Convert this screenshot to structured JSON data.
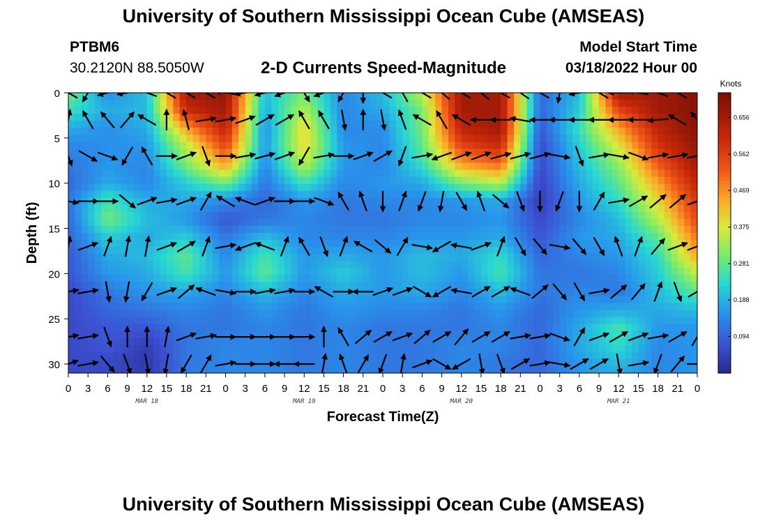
{
  "header": {
    "title": "University of Southern Mississippi Ocean Cube (AMSEAS)",
    "station_id": "PTBM6",
    "station_coords": "30.2120N  88.5050W",
    "subtitle": "2-D Currents Speed-Magnitude",
    "model_start_label": "Model Start Time",
    "model_start_value": "03/18/2022 Hour 00"
  },
  "footer": {
    "title": "University of Southern Mississippi Ocean Cube (AMSEAS)"
  },
  "chart_data": {
    "type": "heatmap",
    "title": "2-D Currents Speed-Magnitude",
    "xlabel": "Forecast Time(Z)",
    "ylabel": "Depth (ft)",
    "x_tick_labels": [
      "0",
      "3",
      "6",
      "9",
      "12",
      "15",
      "18",
      "21",
      "0",
      "3",
      "6",
      "9",
      "12",
      "15",
      "18",
      "21",
      "0",
      "3",
      "6",
      "9",
      "12",
      "15",
      "18",
      "21",
      "0",
      "3",
      "6",
      "9",
      "12",
      "15",
      "18",
      "21",
      "0"
    ],
    "x_range_hours": [
      0,
      96
    ],
    "date_labels": [
      {
        "label": "MAR 18",
        "hour": 12
      },
      {
        "label": "MAR 19",
        "hour": 36
      },
      {
        "label": "MAR 20",
        "hour": 60
      },
      {
        "label": "MAR 21",
        "hour": 84
      }
    ],
    "y_tick_labels": [
      "0",
      "5",
      "10",
      "15",
      "20",
      "25",
      "30"
    ],
    "y_tick_values": [
      0,
      5,
      10,
      15,
      20,
      25,
      30
    ],
    "y_range_ft": [
      0,
      31
    ],
    "y_reversed": true,
    "colorbar": {
      "title": "Knots",
      "tick_labels": [
        "0.094",
        "0.188",
        "0.281",
        "0.375",
        "0.469",
        "0.562",
        "0.656"
      ],
      "tick_values": [
        0.094,
        0.188,
        0.281,
        0.375,
        0.469,
        0.562,
        0.656
      ],
      "range": [
        0.0,
        0.72
      ]
    },
    "depths_ft": [
      0,
      2,
      4,
      6,
      8,
      10,
      12,
      14,
      16,
      18,
      20,
      22,
      24,
      26,
      28,
      30,
      31
    ],
    "hours": [
      0,
      6,
      12,
      18,
      24,
      30,
      36,
      42,
      48,
      54,
      60,
      66,
      72,
      78,
      84,
      90,
      96
    ],
    "speed_knots": [
      [
        0.3,
        0.15,
        0.2,
        0.66,
        0.68,
        0.2,
        0.3,
        0.14,
        0.2,
        0.35,
        0.66,
        0.66,
        0.1,
        0.2,
        0.66,
        0.66,
        0.7
      ],
      [
        0.25,
        0.18,
        0.2,
        0.6,
        0.66,
        0.18,
        0.35,
        0.14,
        0.18,
        0.3,
        0.66,
        0.66,
        0.1,
        0.22,
        0.55,
        0.66,
        0.7
      ],
      [
        0.18,
        0.15,
        0.18,
        0.45,
        0.62,
        0.15,
        0.4,
        0.14,
        0.15,
        0.3,
        0.62,
        0.66,
        0.08,
        0.25,
        0.45,
        0.62,
        0.7
      ],
      [
        0.14,
        0.15,
        0.16,
        0.35,
        0.55,
        0.16,
        0.4,
        0.16,
        0.14,
        0.28,
        0.55,
        0.6,
        0.06,
        0.22,
        0.38,
        0.58,
        0.68
      ],
      [
        0.12,
        0.16,
        0.14,
        0.3,
        0.45,
        0.14,
        0.35,
        0.16,
        0.14,
        0.24,
        0.45,
        0.5,
        0.06,
        0.2,
        0.32,
        0.52,
        0.66
      ],
      [
        0.1,
        0.18,
        0.14,
        0.22,
        0.3,
        0.12,
        0.25,
        0.14,
        0.16,
        0.18,
        0.3,
        0.35,
        0.05,
        0.18,
        0.28,
        0.45,
        0.62
      ],
      [
        0.12,
        0.26,
        0.18,
        0.18,
        0.14,
        0.1,
        0.16,
        0.12,
        0.14,
        0.14,
        0.16,
        0.18,
        0.04,
        0.16,
        0.24,
        0.4,
        0.58
      ],
      [
        0.1,
        0.3,
        0.2,
        0.16,
        0.08,
        0.12,
        0.14,
        0.12,
        0.12,
        0.14,
        0.14,
        0.16,
        0.06,
        0.14,
        0.2,
        0.35,
        0.55
      ],
      [
        0.1,
        0.22,
        0.18,
        0.22,
        0.12,
        0.2,
        0.14,
        0.14,
        0.14,
        0.16,
        0.16,
        0.18,
        0.08,
        0.16,
        0.18,
        0.28,
        0.5
      ],
      [
        0.08,
        0.18,
        0.2,
        0.28,
        0.14,
        0.26,
        0.16,
        0.18,
        0.16,
        0.2,
        0.18,
        0.24,
        0.1,
        0.14,
        0.16,
        0.24,
        0.45
      ],
      [
        0.08,
        0.16,
        0.18,
        0.26,
        0.16,
        0.28,
        0.16,
        0.22,
        0.16,
        0.2,
        0.16,
        0.26,
        0.12,
        0.12,
        0.14,
        0.22,
        0.36
      ],
      [
        0.06,
        0.12,
        0.16,
        0.18,
        0.14,
        0.2,
        0.14,
        0.18,
        0.16,
        0.18,
        0.14,
        0.2,
        0.12,
        0.14,
        0.12,
        0.2,
        0.28
      ],
      [
        0.06,
        0.1,
        0.12,
        0.14,
        0.12,
        0.16,
        0.12,
        0.16,
        0.14,
        0.14,
        0.12,
        0.16,
        0.1,
        0.16,
        0.18,
        0.18,
        0.2
      ],
      [
        0.06,
        0.08,
        0.08,
        0.12,
        0.12,
        0.14,
        0.12,
        0.14,
        0.12,
        0.12,
        0.12,
        0.14,
        0.1,
        0.18,
        0.26,
        0.16,
        0.16
      ],
      [
        0.06,
        0.08,
        0.04,
        0.12,
        0.14,
        0.14,
        0.12,
        0.14,
        0.12,
        0.12,
        0.14,
        0.14,
        0.1,
        0.18,
        0.24,
        0.14,
        0.16
      ],
      [
        0.06,
        0.06,
        0.03,
        0.12,
        0.14,
        0.14,
        0.12,
        0.14,
        0.12,
        0.12,
        0.14,
        0.12,
        0.1,
        0.16,
        0.2,
        0.14,
        0.16
      ],
      [
        0.06,
        0.06,
        0.04,
        0.12,
        0.14,
        0.14,
        0.12,
        0.14,
        0.12,
        0.12,
        0.14,
        0.12,
        0.1,
        0.16,
        0.18,
        0.14,
        0.16
      ]
    ],
    "vector_depths_ft": [
      0,
      3,
      7,
      12,
      17,
      22,
      27,
      30
    ],
    "vector_hours": [
      0,
      3,
      6,
      9,
      12,
      15,
      18,
      21,
      24,
      27,
      30,
      33,
      36,
      39,
      42,
      45,
      48,
      51,
      54,
      57,
      60,
      63,
      66,
      69,
      72,
      75,
      78,
      81,
      84,
      87,
      90,
      93,
      96
    ],
    "vector_direction_deg": [
      [
        300,
        210,
        255,
        260,
        290,
        300,
        300,
        300,
        280,
        260,
        255,
        250,
        150,
        250,
        210,
        180,
        300,
        330,
        300,
        310,
        300,
        310,
        300,
        305,
        300,
        190,
        260,
        300,
        270,
        280,
        290,
        300,
        300
      ],
      [
        10,
        330,
        320,
        40,
        300,
        0,
        345,
        80,
        80,
        70,
        60,
        60,
        330,
        330,
        170,
        0,
        170,
        340,
        300,
        330,
        300,
        270,
        270,
        280,
        270,
        270,
        270,
        270,
        270,
        270,
        265,
        300,
        320
      ],
      [
        160,
        120,
        110,
        210,
        330,
        90,
        70,
        160,
        90,
        80,
        75,
        70,
        210,
        80,
        90,
        70,
        60,
        200,
        80,
        250,
        70,
        70,
        75,
        75,
        75,
        100,
        160,
        80,
        100,
        110,
        80,
        80,
        80
      ],
      [
        100,
        90,
        90,
        130,
        70,
        80,
        70,
        30,
        300,
        290,
        70,
        90,
        90,
        110,
        330,
        340,
        180,
        20,
        200,
        190,
        150,
        340,
        130,
        160,
        180,
        200,
        180,
        30,
        80,
        60,
        50,
        50,
        70
      ],
      [
        10,
        70,
        20,
        10,
        10,
        70,
        60,
        20,
        80,
        250,
        290,
        20,
        330,
        160,
        20,
        300,
        130,
        30,
        100,
        240,
        280,
        70,
        20,
        150,
        140,
        100,
        140,
        150,
        340,
        20,
        40,
        70,
        70
      ],
      [
        80,
        80,
        170,
        190,
        210,
        70,
        50,
        290,
        100,
        90,
        80,
        80,
        90,
        300,
        90,
        270,
        70,
        70,
        120,
        240,
        280,
        60,
        60,
        290,
        50,
        140,
        150,
        80,
        50,
        40,
        20,
        160,
        60
      ],
      [
        80,
        80,
        160,
        0,
        0,
        10,
        70,
        80,
        90,
        90,
        90,
        90,
        90,
        0,
        330,
        50,
        60,
        70,
        50,
        60,
        40,
        60,
        60,
        80,
        80,
        110,
        30,
        70,
        60,
        70,
        80,
        60,
        30
      ],
      [
        70,
        80,
        140,
        160,
        170,
        190,
        210,
        30,
        80,
        90,
        90,
        270,
        270,
        10,
        340,
        30,
        200,
        10,
        70,
        120,
        240,
        170,
        160,
        60,
        80,
        100,
        60,
        60,
        170,
        80,
        200,
        40,
        90
      ]
    ]
  }
}
